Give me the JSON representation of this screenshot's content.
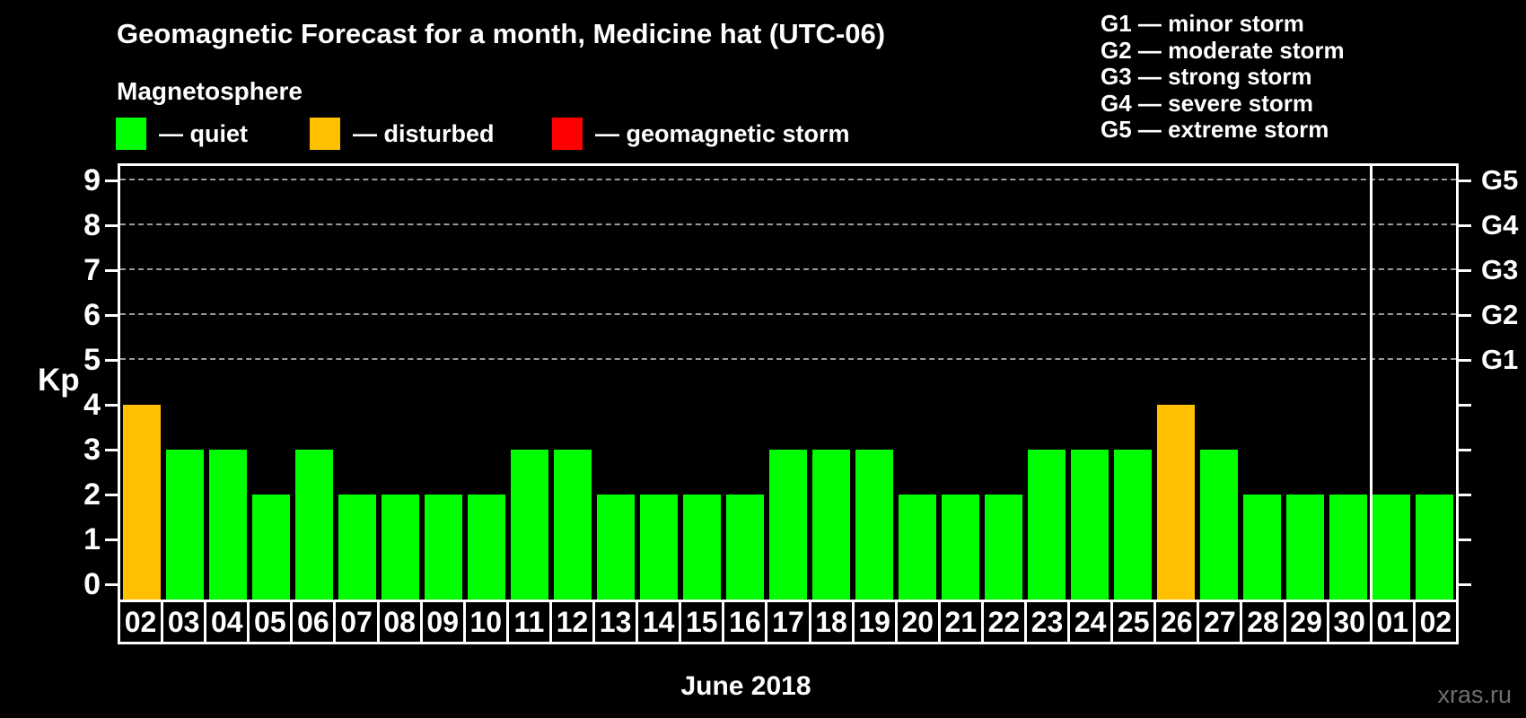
{
  "title": "Geomagnetic Forecast for a month, Medicine hat (UTC-06)",
  "magnetosphere_label": "Magnetosphere",
  "legend": {
    "items": [
      {
        "name": "quiet",
        "swatch_color": "#00FF00",
        "label": "— quiet"
      },
      {
        "name": "disturbed",
        "swatch_color": "#FFC000",
        "label": "— disturbed"
      },
      {
        "name": "storm",
        "swatch_color": "#FF0000",
        "label": "— geomagnetic storm"
      }
    ]
  },
  "g_scale_legend": {
    "items": [
      "G1 — minor storm",
      "G2 — moderate storm",
      "G3 — strong storm",
      "G4 — severe storm",
      "G5 — extreme storm"
    ]
  },
  "chart_data": {
    "type": "bar",
    "title": "Geomagnetic Forecast for a month, Medicine hat (UTC-06)",
    "xlabel": "June 2018",
    "ylabel": "Kp",
    "ylim": [
      0,
      9
    ],
    "yticks": [
      0,
      1,
      2,
      3,
      4,
      5,
      6,
      7,
      8,
      9
    ],
    "grid": "horizontal dashed lines at Kp 5 through 9",
    "gridlines_at": [
      5,
      6,
      7,
      8,
      9
    ],
    "right_axis": {
      "labels": [
        {
          "kp": 5,
          "label": "G1"
        },
        {
          "kp": 6,
          "label": "G2"
        },
        {
          "kp": 7,
          "label": "G3"
        },
        {
          "kp": 8,
          "label": "G4"
        },
        {
          "kp": 9,
          "label": "G5"
        }
      ]
    },
    "categories": [
      "02",
      "03",
      "04",
      "05",
      "06",
      "07",
      "08",
      "09",
      "10",
      "11",
      "12",
      "13",
      "14",
      "15",
      "16",
      "17",
      "18",
      "19",
      "20",
      "21",
      "22",
      "23",
      "24",
      "25",
      "26",
      "27",
      "28",
      "29",
      "30",
      "01",
      "02"
    ],
    "values": [
      4,
      3,
      3,
      2,
      3,
      2,
      2,
      2,
      2,
      3,
      3,
      2,
      2,
      2,
      2,
      3,
      3,
      3,
      2,
      2,
      2,
      3,
      3,
      3,
      4,
      3,
      2,
      2,
      2,
      2,
      2
    ],
    "statuses": [
      "disturbed",
      "quiet",
      "quiet",
      "quiet",
      "quiet",
      "quiet",
      "quiet",
      "quiet",
      "quiet",
      "quiet",
      "quiet",
      "quiet",
      "quiet",
      "quiet",
      "quiet",
      "quiet",
      "quiet",
      "quiet",
      "quiet",
      "quiet",
      "quiet",
      "quiet",
      "quiet",
      "quiet",
      "disturbed",
      "quiet",
      "quiet",
      "quiet",
      "quiet",
      "quiet",
      "quiet"
    ],
    "status_colors": {
      "quiet": "#00FF00",
      "disturbed": "#FFC000",
      "storm": "#FF0000"
    },
    "month_separator_after_index": 28,
    "legend_position": "top-left"
  },
  "watermark": "xras.ru"
}
